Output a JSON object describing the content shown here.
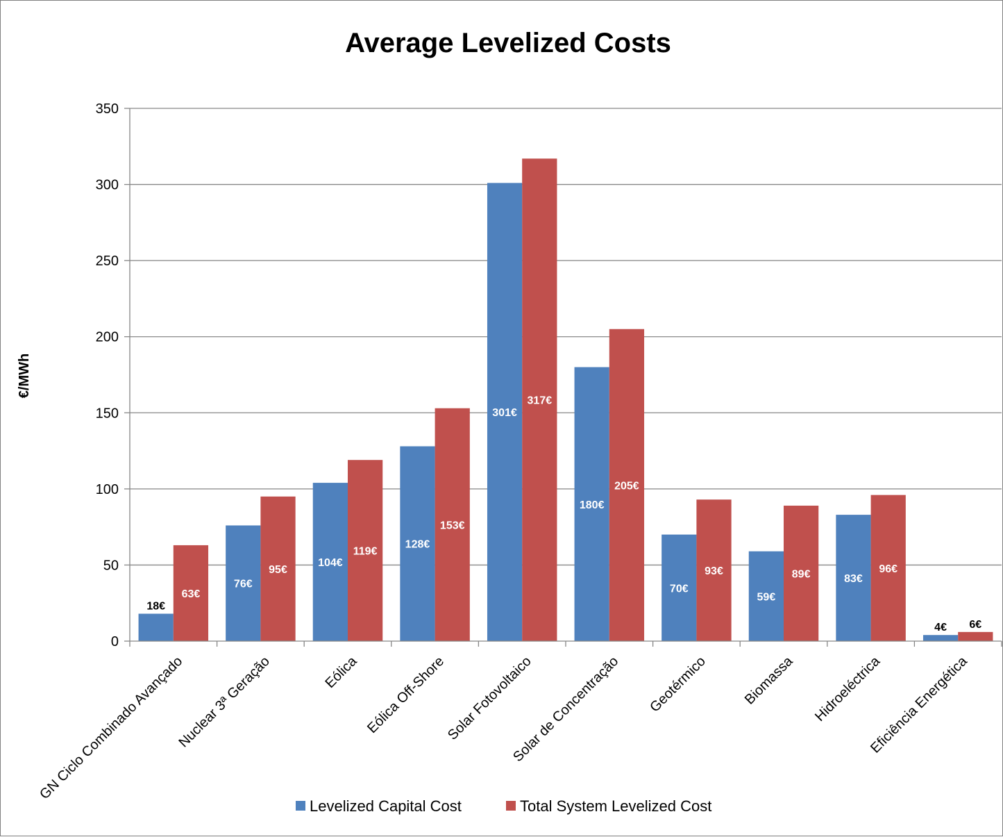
{
  "chart_data": {
    "type": "bar",
    "title": "Average Levelized Costs",
    "xlabel": "",
    "ylabel": "€/MWh",
    "ylim": [
      0,
      350
    ],
    "yticks": [
      0,
      50,
      100,
      150,
      200,
      250,
      300,
      350
    ],
    "grid": true,
    "legend_position": "bottom",
    "categories": [
      "GN Ciclo Combinado Avançado",
      "Nuclear 3ª Geração",
      "Eólica",
      "Eólica Off-Shore",
      "Solar Fotovoltaico",
      "Solar de Concentração",
      "Geotérmico",
      "Biomassa",
      "Hidroeléctrica",
      "Eficiência Energética"
    ],
    "series": [
      {
        "name": "Levelized Capital Cost",
        "color": "#4f81bd",
        "values": [
          18,
          76,
          104,
          128,
          301,
          180,
          70,
          59,
          83,
          4
        ],
        "labels": [
          "18€",
          "76€",
          "104€",
          "128€",
          "301€",
          "180€",
          "70€",
          "59€",
          "83€",
          "4€"
        ]
      },
      {
        "name": "Total System Levelized Cost",
        "color": "#c0504d",
        "values": [
          63,
          95,
          119,
          153,
          317,
          205,
          93,
          89,
          96,
          6
        ],
        "labels": [
          "63€",
          "95€",
          "119€",
          "153€",
          "317€",
          "205€",
          "93€",
          "89€",
          "96€",
          "6€"
        ]
      }
    ]
  }
}
